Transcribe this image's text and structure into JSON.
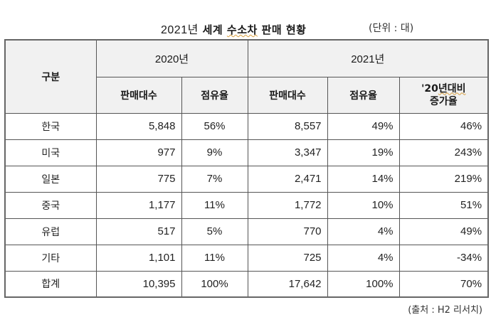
{
  "title": {
    "year": "2021년",
    "prefix": "세계",
    "underlined": "수소차",
    "suffix": "판매 현황"
  },
  "unit": "(단위 : 대)",
  "table": {
    "category_header": "구분",
    "year_headers": [
      "2020년",
      "2021년"
    ],
    "sub_headers": [
      "판매대수",
      "점유율",
      "판매대수",
      "점유율"
    ],
    "growth_header": {
      "line1_prefix": "'20",
      "line1_rest": "년대비",
      "line2": "증가율"
    },
    "rows": [
      {
        "category": "한국",
        "sales_2020": "5,848",
        "share_2020": "56%",
        "sales_2021": "8,557",
        "share_2021": "49%",
        "growth": "46%"
      },
      {
        "category": "미국",
        "sales_2020": "977",
        "share_2020": "9%",
        "sales_2021": "3,347",
        "share_2021": "19%",
        "growth": "243%"
      },
      {
        "category": "일본",
        "sales_2020": "775",
        "share_2020": "7%",
        "sales_2021": "2,471",
        "share_2021": "14%",
        "growth": "219%"
      },
      {
        "category": "중국",
        "sales_2020": "1,177",
        "share_2020": "11%",
        "sales_2021": "1,772",
        "share_2021": "10%",
        "growth": "51%"
      },
      {
        "category": "유럽",
        "sales_2020": "517",
        "share_2020": "5%",
        "sales_2021": "770",
        "share_2021": "4%",
        "growth": "49%"
      },
      {
        "category": "기타",
        "sales_2020": "1,101",
        "share_2020": "11%",
        "sales_2021": "725",
        "share_2021": "4%",
        "growth": "-34%"
      },
      {
        "category": "합계",
        "sales_2020": "10,395",
        "share_2020": "100%",
        "sales_2021": "17,642",
        "share_2021": "100%",
        "growth": "70%"
      }
    ]
  },
  "source": "(출처 : H2 리서치)",
  "colors": {
    "header_bg": "#f1f1f1",
    "border": "#555555",
    "text": "#222222"
  }
}
